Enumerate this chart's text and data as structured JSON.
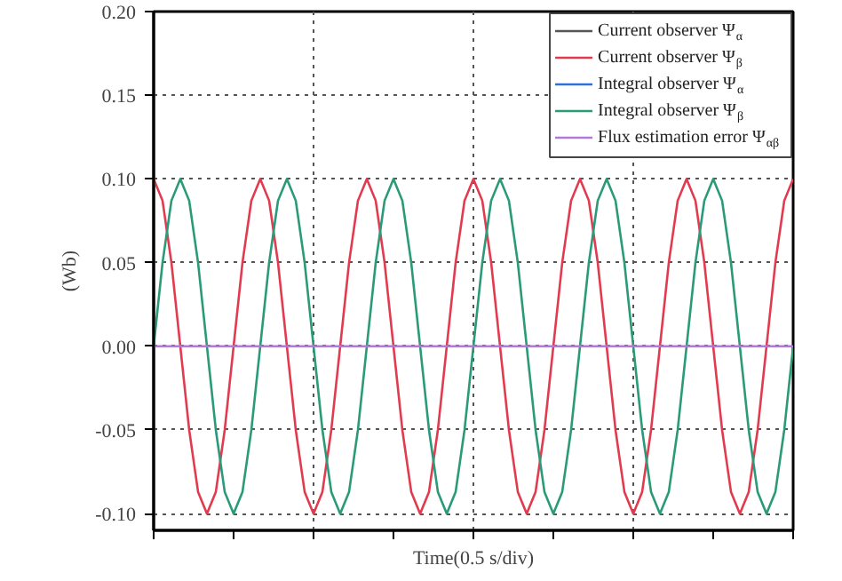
{
  "chart_data": {
    "type": "line",
    "ylabel": "(Wb)",
    "xlabel": "Time(0.5 s/div)",
    "categories": [
      null,
      null,
      null,
      null,
      null,
      null,
      null,
      null,
      null,
      null,
      null,
      null,
      null,
      null,
      null,
      null,
      null,
      null,
      null,
      null,
      null,
      null,
      null,
      null,
      null,
      null,
      null,
      null,
      null,
      null,
      null,
      null,
      null,
      null,
      null,
      null,
      null,
      null,
      null,
      null,
      null,
      null,
      null,
      null,
      null,
      null,
      null,
      null,
      null,
      null,
      null,
      null,
      null,
      null,
      null,
      null,
      null,
      null,
      null,
      null,
      null,
      null,
      null,
      null,
      null,
      null,
      null,
      null,
      null,
      null,
      null,
      null,
      null
    ],
    "series": [
      {
        "name": "Current observer Ψ$_{α}$",
        "color": "#555555",
        "values": [
          null,
          null,
          null,
          null,
          null,
          null,
          null,
          null,
          null,
          null,
          null,
          null,
          null,
          null,
          null,
          null,
          null,
          null,
          null,
          null,
          null,
          null,
          null,
          null,
          null,
          null,
          null,
          null,
          null,
          null,
          null,
          null,
          null,
          null,
          null,
          null,
          null,
          null,
          null,
          null,
          null,
          null,
          null,
          null,
          null,
          null,
          null,
          null,
          null,
          null,
          null,
          null,
          null,
          null,
          null,
          null,
          null,
          null,
          null,
          null,
          null,
          null,
          null,
          null,
          null,
          null,
          null,
          null,
          null,
          null,
          null,
          null,
          null
        ]
      },
      {
        "name": "Current observer Ψ$_{β}$",
        "color": "#e23a4e",
        "values": [
          0.1,
          0.087,
          0.05,
          0,
          -0.05,
          -0.087,
          -0.1,
          -0.087,
          -0.05,
          0,
          0.05,
          0.087,
          0.1,
          0.087,
          0.05,
          0,
          -0.05,
          -0.087,
          -0.1,
          -0.087,
          -0.05,
          0,
          0.05,
          0.087,
          0.1,
          0.087,
          0.05,
          0,
          -0.05,
          -0.087,
          -0.1,
          -0.087,
          -0.05,
          0,
          0.05,
          0.087,
          0.1,
          0.087,
          0.05,
          0,
          -0.05,
          -0.087,
          -0.1,
          -0.087,
          -0.05,
          0,
          0.05,
          0.087,
          0.1,
          0.087,
          0.05,
          0,
          -0.05,
          -0.087,
          -0.1,
          -0.087,
          -0.05,
          0,
          0.05,
          0.087,
          0.1,
          0.087,
          0.05,
          0,
          -0.05,
          -0.087,
          -0.1,
          -0.087,
          -0.05,
          0,
          0.05,
          0.087,
          0.1
        ]
      },
      {
        "name": "Integral observer Ψ$_{α}$",
        "color": "#2f6fd8",
        "values": [
          null,
          null,
          null,
          null,
          null,
          null,
          null,
          null,
          null,
          null,
          null,
          null,
          null,
          null,
          null,
          null,
          null,
          null,
          null,
          null,
          null,
          null,
          null,
          null,
          null,
          null,
          null,
          null,
          null,
          null,
          null,
          null,
          null,
          null,
          null,
          null,
          null,
          null,
          null,
          null,
          null,
          null,
          null,
          null,
          null,
          null,
          null,
          null,
          null,
          null,
          null,
          null,
          null,
          null,
          null,
          null,
          null,
          null,
          null,
          null,
          null,
          null,
          null,
          null,
          null,
          null,
          null,
          null,
          null,
          null,
          null,
          null,
          null
        ]
      },
      {
        "name": "Integral observer Ψ$_{β}$",
        "color": "#2a9a78",
        "values": [
          0,
          0.05,
          0.087,
          0.1,
          0.087,
          0.05,
          0,
          -0.05,
          -0.087,
          -0.1,
          -0.087,
          -0.05,
          0,
          0.05,
          0.087,
          0.1,
          0.087,
          0.05,
          0,
          -0.05,
          -0.087,
          -0.1,
          -0.087,
          -0.05,
          0,
          0.05,
          0.087,
          0.1,
          0.087,
          0.05,
          0,
          -0.05,
          -0.087,
          -0.1,
          -0.087,
          -0.05,
          0,
          0.05,
          0.087,
          0.1,
          0.087,
          0.05,
          0,
          -0.05,
          -0.087,
          -0.1,
          -0.087,
          -0.05,
          0,
          0.05,
          0.087,
          0.1,
          0.087,
          0.05,
          0,
          -0.05,
          -0.087,
          -0.1,
          -0.087,
          -0.05,
          0,
          0.05,
          0.087,
          0.1,
          0.087,
          0.05,
          0,
          -0.05,
          -0.087,
          -0.1,
          -0.087,
          -0.05,
          0
        ]
      },
      {
        "name": "Flux estimation error Ψ$_{αβ}$",
        "color": "#b07ad8",
        "values": [
          0,
          0,
          0,
          0,
          0,
          0,
          0,
          0,
          0,
          0,
          0,
          0,
          0,
          0,
          0,
          0,
          0,
          0,
          0,
          0,
          0,
          0,
          0,
          0,
          0,
          0,
          0,
          0,
          0,
          0,
          0,
          0,
          0,
          0,
          0,
          0,
          0,
          0,
          0,
          0,
          0,
          0,
          0,
          0,
          0,
          0,
          0,
          0,
          0,
          0,
          0,
          0,
          0,
          0,
          0,
          0,
          0,
          0,
          0,
          0,
          0,
          0,
          0,
          0,
          0,
          0,
          0,
          0,
          0,
          0,
          0,
          0,
          0
        ]
      }
    ],
    "ylim": [
      -0.11,
      0.2
    ],
    "yticks": [
      {
        "value": -0.1,
        "label": "-0.10"
      },
      {
        "value": -0.05,
        "label": "-0.05"
      },
      {
        "value": 0,
        "label": "0.00"
      },
      {
        "value": 0.05,
        "label": "0.05"
      },
      {
        "value": 0.1,
        "label": "0.10"
      },
      {
        "value": 0.15,
        "label": "0.15"
      },
      {
        "value": 0.2,
        "label": "0.20"
      }
    ],
    "grid": true,
    "legend": "top right",
    "tick_labels": "y",
    "line_style": "solid",
    "marker": "none"
  }
}
